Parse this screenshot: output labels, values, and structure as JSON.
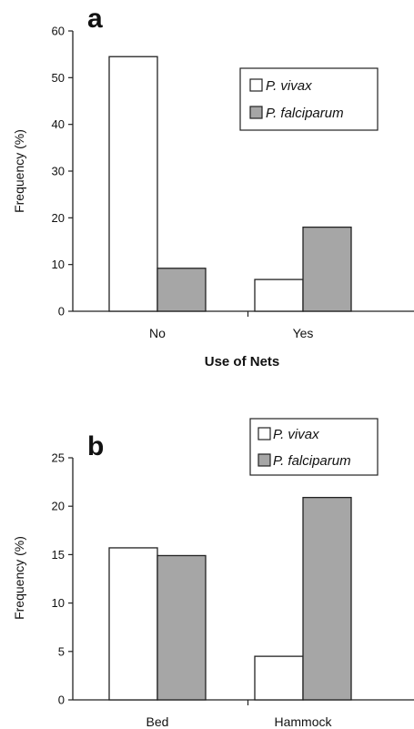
{
  "chart_data": [
    {
      "type": "bar",
      "panel_label": "a",
      "categories": [
        "No",
        "Yes"
      ],
      "series": [
        {
          "name": "P. vivax",
          "values": [
            54.5,
            6.8
          ],
          "color": "#ffffff"
        },
        {
          "name": "P. falciparum",
          "values": [
            9.2,
            18.0
          ],
          "color": "#a6a6a6"
        }
      ],
      "xlabel": "Use of Nets",
      "ylabel": "Frequency (%)",
      "ylim": [
        0,
        60
      ],
      "yticks": [
        0,
        10,
        20,
        30,
        40,
        50,
        60
      ],
      "legend_position": "top-right",
      "grid": false
    },
    {
      "type": "bar",
      "panel_label": "b",
      "categories": [
        "Bed",
        "Hammock"
      ],
      "series": [
        {
          "name": "P. vivax",
          "values": [
            15.7,
            4.5
          ],
          "color": "#ffffff"
        },
        {
          "name": "P. falciparum",
          "values": [
            14.9,
            20.9
          ],
          "color": "#a6a6a6"
        }
      ],
      "xlabel": "",
      "ylabel": "Frequency (%)",
      "ylim": [
        0,
        25
      ],
      "yticks": [
        0,
        5,
        10,
        15,
        20,
        25
      ],
      "legend_position": "top-right",
      "grid": false
    }
  ]
}
